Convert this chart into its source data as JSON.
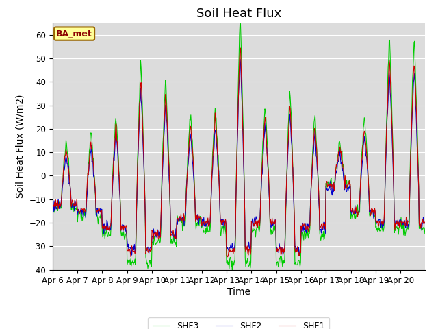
{
  "title": "Soil Heat Flux",
  "ylabel": "Soil Heat Flux (W/m2)",
  "xlabel": "Time",
  "ylim": [
    -40,
    65
  ],
  "yticks": [
    -40,
    -30,
    -20,
    -10,
    0,
    10,
    20,
    30,
    40,
    50,
    60
  ],
  "line_colors": [
    "#cc0000",
    "#0000cc",
    "#00cc00"
  ],
  "line_labels": [
    "SHF1",
    "SHF2",
    "SHF3"
  ],
  "line_width": 0.8,
  "bg_color": "#dcdcdc",
  "annotation_text": "BA_met",
  "annotation_bg": "#ffff99",
  "annotation_border": "#996600",
  "title_fontsize": 13,
  "axis_label_fontsize": 10,
  "tick_fontsize": 8.5,
  "grid_color": "#ffffff",
  "day_peaks": [
    12,
    15,
    22,
    42,
    35,
    22,
    25,
    58,
    25,
    32,
    22,
    12,
    21,
    50,
    50
  ],
  "day_troughs": [
    -12,
    -15,
    -22,
    -32,
    -25,
    -18,
    -20,
    -32,
    -20,
    -32,
    -22,
    -4,
    -15,
    -20,
    -20
  ]
}
